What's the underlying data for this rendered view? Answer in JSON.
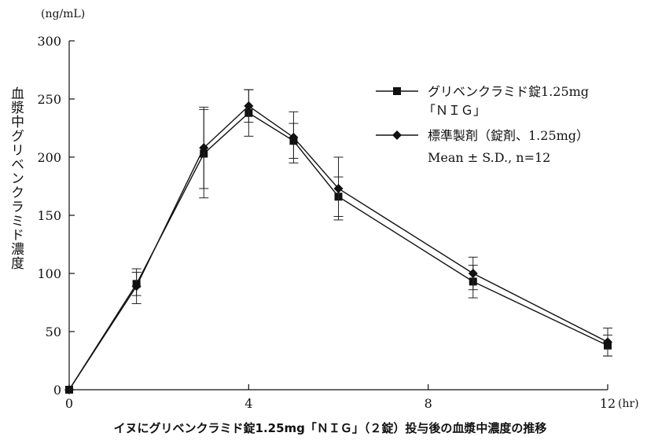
{
  "chart_data": {
    "type": "line",
    "title": "",
    "caption": "イヌにグリベンクラミド錠1.25mg「ＮＩＧ」（２錠）投与後の血漿中濃度の推移",
    "xlabel": "",
    "x_unit": "(hr)",
    "ylabel": "血漿中グリベンクラミド濃度",
    "y_unit": "(ng/mL)",
    "xlim": [
      0,
      12
    ],
    "ylim": [
      0,
      300
    ],
    "x_ticks": [
      "0",
      "4",
      "8",
      "12"
    ],
    "x_tick_values": [
      0,
      4,
      8,
      12
    ],
    "y_ticks": [
      "0",
      "50",
      "100",
      "150",
      "200",
      "250",
      "300"
    ],
    "y_tick_values": [
      0,
      50,
      100,
      150,
      200,
      250,
      300
    ],
    "grid": false,
    "legend_position": "top-right",
    "legend_note": "Mean ± S.D., n=12",
    "x": [
      0,
      1.5,
      3,
      4,
      5,
      6,
      9,
      12
    ],
    "series": [
      {
        "name": "グリベンクラミド錠1.25mg「ＮＩＧ」",
        "marker": "square",
        "values": [
          0,
          91,
          203,
          238,
          214,
          166,
          93,
          38
        ],
        "sd": [
          0,
          10,
          38,
          20,
          15,
          17,
          14,
          9
        ]
      },
      {
        "name": "標準製剤（錠剤、1.25mg）",
        "marker": "diamond",
        "values": [
          0,
          89,
          208,
          244,
          217,
          173,
          100,
          41
        ],
        "sd": [
          0,
          15,
          35,
          14,
          22,
          27,
          14,
          12
        ]
      }
    ]
  }
}
